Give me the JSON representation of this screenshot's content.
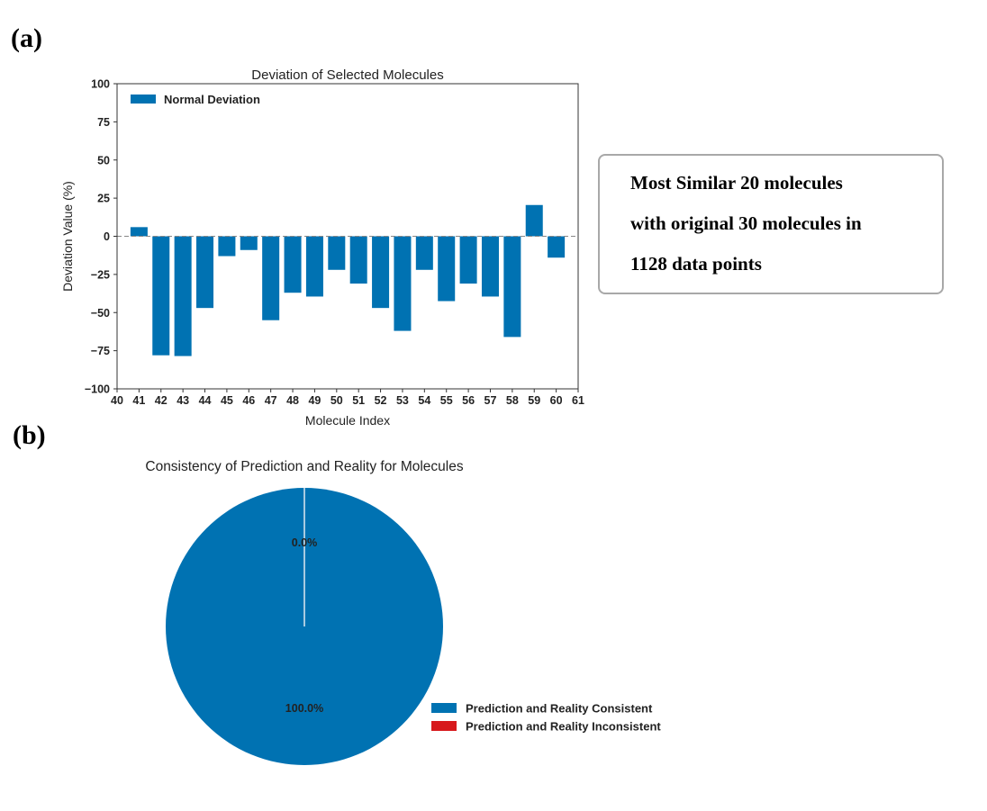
{
  "panels": {
    "a_label": "(a)",
    "b_label": "(b)"
  },
  "note": {
    "lines": [
      "Most Similar 20 molecules",
      "with original 30 molecules in",
      "1128 data points"
    ]
  },
  "chart_data": [
    {
      "type": "bar",
      "title": "Deviation of Selected Molecules",
      "xlabel": "Molecule Index",
      "ylabel": "Deviation Value (%)",
      "categories": [
        41,
        42,
        43,
        44,
        45,
        46,
        47,
        48,
        49,
        50,
        51,
        52,
        53,
        54,
        55,
        56,
        57,
        58,
        59,
        60
      ],
      "series": [
        {
          "name": "Normal Deviation",
          "color": "#0072b2",
          "values": [
            6,
            -78,
            -78.5,
            -47,
            -13,
            -9,
            -55,
            -37,
            -39.5,
            -22,
            -31,
            -47,
            -62,
            -22,
            -42.5,
            -31,
            -39.5,
            -66,
            20.5,
            -14
          ]
        }
      ],
      "xlim": [
        40,
        61
      ],
      "ylim": [
        -100,
        100
      ],
      "xticks": [
        "40",
        "41",
        "42",
        "43",
        "44",
        "45",
        "46",
        "47",
        "48",
        "49",
        "50",
        "51",
        "52",
        "53",
        "54",
        "55",
        "56",
        "57",
        "58",
        "59",
        "60",
        "61"
      ],
      "yticks": [
        "−100",
        "−75",
        "−50",
        "−25",
        "0",
        "25",
        "50",
        "75",
        "100"
      ],
      "zero_line": "dashed",
      "legend": "top-left",
      "grid": false
    },
    {
      "type": "pie",
      "title": "Consistency of Prediction and Reality for Molecules",
      "slices": [
        {
          "label": "Prediction and Reality Consistent",
          "value": 100.0,
          "pct_label": "100.0%",
          "color": "#0072b2"
        },
        {
          "label": "Prediction and Reality Inconsistent",
          "value": 0.0,
          "pct_label": "0.0%",
          "color": "#d7191c"
        }
      ],
      "legend": "bottom-right"
    }
  ]
}
